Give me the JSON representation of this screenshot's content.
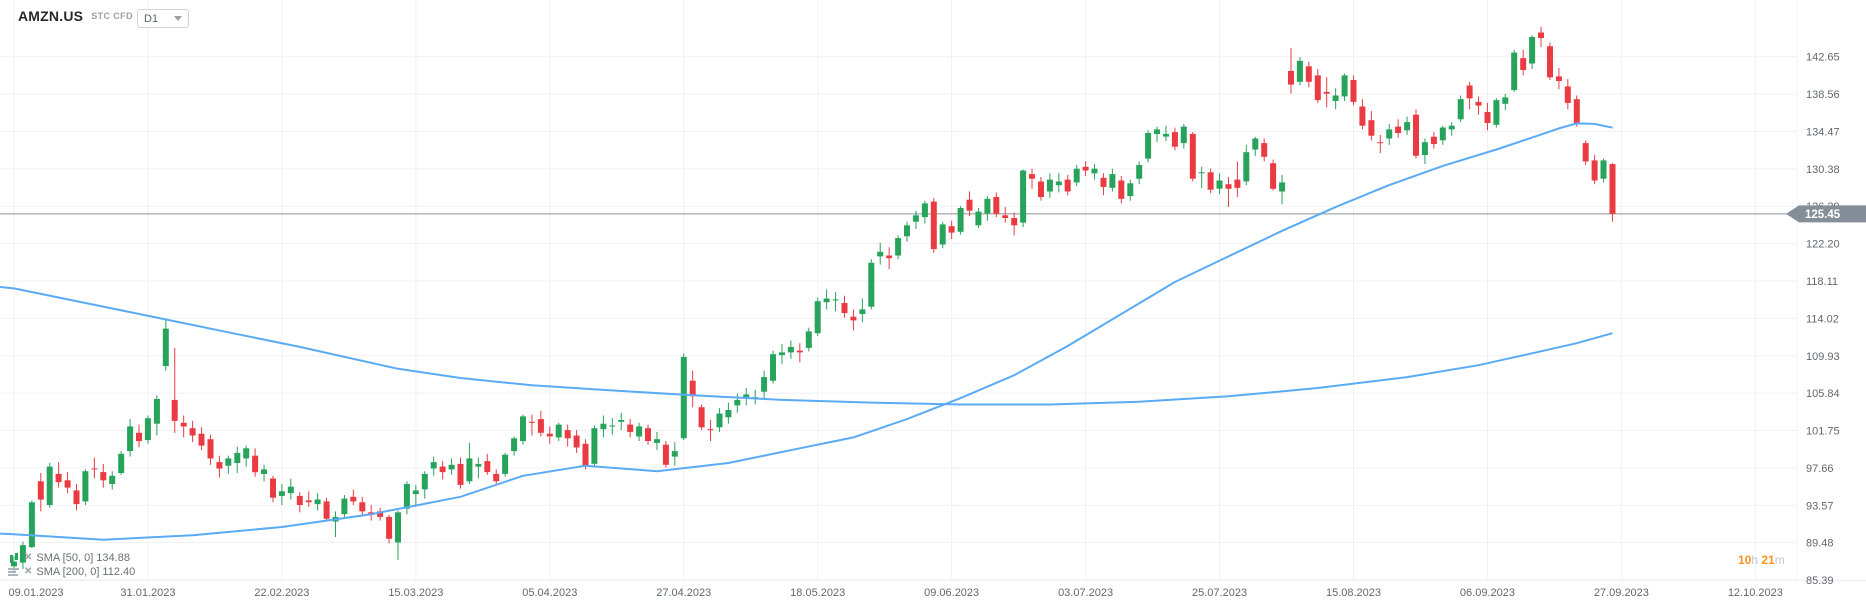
{
  "header": {
    "symbol": "AMZN.US",
    "instrument_type": "STC CFD",
    "timeframe": "D1"
  },
  "indicators": [
    {
      "icon": "candles-icon",
      "close_label": "✕",
      "label": "SMA [50, 0] 134.88"
    },
    {
      "icon": "lines-icon",
      "close_label": "✕",
      "label": "SMA [200, 0] 112.40"
    }
  ],
  "countdown": {
    "hours": "10",
    "hours_unit": "h ",
    "minutes": "21",
    "minutes_unit": "m"
  },
  "price_axis": {
    "labels": [
      "142.65",
      "138.56",
      "134.47",
      "130.38",
      "126.29",
      "122.20",
      "118.11",
      "114.02",
      "109.93",
      "105.84",
      "101.75",
      "97.66",
      "93.57",
      "89.48",
      "85.39"
    ],
    "current_price": "125.45"
  },
  "time_axis": {
    "labels": [
      "09.01.2023",
      "31.01.2023",
      "22.02.2023",
      "15.03.2023",
      "05.04.2023",
      "27.04.2023",
      "18.05.2023",
      "09.06.2023",
      "03.07.2023",
      "25.07.2023",
      "15.08.2023",
      "06.09.2023",
      "27.09.2023",
      "12.10.2023"
    ]
  },
  "colors": {
    "up": "#27a35c",
    "down": "#ea3b43",
    "sma": "#5aabf5",
    "grid": "#f0f1f3",
    "price_line": "#8c9196",
    "price_tag_bg": "#848e98",
    "axis_text": "#62686f",
    "countdown_orange": "#f7941d"
  },
  "chart_data": {
    "type": "candlestick",
    "title": "AMZN.US STC CFD D1",
    "ylabel": "price",
    "axis_price_top": 142.65,
    "axis_price_step": 4.09,
    "axis_price_bottom": 85.39,
    "current_price": 125.45,
    "grid": true,
    "candles_per_label": 15,
    "candles": [
      [
        86.9,
        88.0,
        86.2,
        87.4
      ],
      [
        87.3,
        89.6,
        86.6,
        89.2
      ],
      [
        89.0,
        94.1,
        88.9,
        93.9
      ],
      [
        96.2,
        97.1,
        92.9,
        94.2
      ],
      [
        93.6,
        98.2,
        93.3,
        97.8
      ],
      [
        97.0,
        98.3,
        95.5,
        96.1
      ],
      [
        96.3,
        97.2,
        94.9,
        95.5
      ],
      [
        95.2,
        95.9,
        93.0,
        93.7
      ],
      [
        94.0,
        97.5,
        93.6,
        97.3
      ],
      [
        97.6,
        98.8,
        96.5,
        97.5
      ],
      [
        97.2,
        98.1,
        95.5,
        96.3
      ],
      [
        95.9,
        97.3,
        95.3,
        96.8
      ],
      [
        97.1,
        99.5,
        96.9,
        99.2
      ],
      [
        99.5,
        103.0,
        98.9,
        102.2
      ],
      [
        101.5,
        102.4,
        99.9,
        100.6
      ],
      [
        100.7,
        103.4,
        100.3,
        103.1
      ],
      [
        102.5,
        105.6,
        101.2,
        105.2
      ],
      [
        108.8,
        114.0,
        108.3,
        112.9
      ],
      [
        105.1,
        110.8,
        101.5,
        102.8
      ],
      [
        102.6,
        103.4,
        101.0,
        102.2
      ],
      [
        102.0,
        102.8,
        100.5,
        101.2
      ],
      [
        101.4,
        102.1,
        99.6,
        100.1
      ],
      [
        100.8,
        101.3,
        98.0,
        98.7
      ],
      [
        98.3,
        99.0,
        96.6,
        97.6
      ],
      [
        97.9,
        99.0,
        97.0,
        98.7
      ],
      [
        98.2,
        100.0,
        97.1,
        99.3
      ],
      [
        98.7,
        100.1,
        97.8,
        99.8
      ],
      [
        99.0,
        99.8,
        96.7,
        97.2
      ],
      [
        97.0,
        98.0,
        96.2,
        97.5
      ],
      [
        96.5,
        96.8,
        93.9,
        94.4
      ],
      [
        94.6,
        95.9,
        93.6,
        95.1
      ],
      [
        94.9,
        96.5,
        94.2,
        95.6
      ],
      [
        94.6,
        95.0,
        92.8,
        93.6
      ],
      [
        94.1,
        95.1,
        93.4,
        93.9
      ],
      [
        93.7,
        94.9,
        93.0,
        94.2
      ],
      [
        94.0,
        94.4,
        91.8,
        92.1
      ],
      [
        91.8,
        92.9,
        90.1,
        92.3
      ],
      [
        92.6,
        94.7,
        92.2,
        94.3
      ],
      [
        94.5,
        95.3,
        93.6,
        94.0
      ],
      [
        93.9,
        94.5,
        92.4,
        92.9
      ],
      [
        92.8,
        93.6,
        91.9,
        92.5
      ],
      [
        92.9,
        93.3,
        91.9,
        92.3
      ],
      [
        92.3,
        92.5,
        89.4,
        89.9
      ],
      [
        89.5,
        93.0,
        87.6,
        92.8
      ],
      [
        93.2,
        96.2,
        92.6,
        95.9
      ],
      [
        94.8,
        95.8,
        93.4,
        95.2
      ],
      [
        95.3,
        97.3,
        94.3,
        97.0
      ],
      [
        97.6,
        98.9,
        96.8,
        98.3
      ],
      [
        97.8,
        98.4,
        96.4,
        97.2
      ],
      [
        97.5,
        98.7,
        96.9,
        98.0
      ],
      [
        98.1,
        98.8,
        95.4,
        95.8
      ],
      [
        96.2,
        100.4,
        95.9,
        98.7
      ],
      [
        97.8,
        98.8,
        96.5,
        98.1
      ],
      [
        98.4,
        99.2,
        96.9,
        97.2
      ],
      [
        97.0,
        97.5,
        95.8,
        96.2
      ],
      [
        97.0,
        99.3,
        96.7,
        99.1
      ],
      [
        99.5,
        101.1,
        99.0,
        100.9
      ],
      [
        100.6,
        103.5,
        100.2,
        103.3
      ],
      [
        102.7,
        103.5,
        101.2,
        102.6
      ],
      [
        103.0,
        103.9,
        101.1,
        101.5
      ],
      [
        101.4,
        102.2,
        100.3,
        101.1
      ],
      [
        101.0,
        102.6,
        100.6,
        102.4
      ],
      [
        101.8,
        102.4,
        100.0,
        100.9
      ],
      [
        101.2,
        101.8,
        99.3,
        99.9
      ],
      [
        100.3,
        100.8,
        97.5,
        97.8
      ],
      [
        98.1,
        102.3,
        97.7,
        102.0
      ],
      [
        101.9,
        103.4,
        101.0,
        102.5
      ],
      [
        102.2,
        103.1,
        101.3,
        102.3
      ],
      [
        102.7,
        103.7,
        101.8,
        102.9
      ],
      [
        102.4,
        103.0,
        101.0,
        101.6
      ],
      [
        101.1,
        102.6,
        100.6,
        102.2
      ],
      [
        102.0,
        102.4,
        100.2,
        100.6
      ],
      [
        100.4,
        101.6,
        99.6,
        100.8
      ],
      [
        100.2,
        100.6,
        97.7,
        98.0
      ],
      [
        98.9,
        100.5,
        97.9,
        99.5
      ],
      [
        100.9,
        110.2,
        100.7,
        109.8
      ],
      [
        107.2,
        108.3,
        104.3,
        105.5
      ],
      [
        104.3,
        104.6,
        101.8,
        102.1
      ],
      [
        101.9,
        102.9,
        100.6,
        101.8
      ],
      [
        102.1,
        104.2,
        101.6,
        103.6
      ],
      [
        103.2,
        104.8,
        102.5,
        104.0
      ],
      [
        104.5,
        105.8,
        103.7,
        105.1
      ],
      [
        105.3,
        106.4,
        104.5,
        105.7
      ],
      [
        105.4,
        106.2,
        104.6,
        105.4
      ],
      [
        106.0,
        108.3,
        105.1,
        107.6
      ],
      [
        107.2,
        110.5,
        106.9,
        110.1
      ],
      [
        110.0,
        111.2,
        109.0,
        110.3
      ],
      [
        110.3,
        111.6,
        109.6,
        110.9
      ],
      [
        110.5,
        111.3,
        109.2,
        110.3
      ],
      [
        110.8,
        113.0,
        110.4,
        112.6
      ],
      [
        112.4,
        116.3,
        112.1,
        115.9
      ],
      [
        115.8,
        117.2,
        115.0,
        116.2
      ],
      [
        116.0,
        116.9,
        114.8,
        116.1
      ],
      [
        115.7,
        116.5,
        114.1,
        114.6
      ],
      [
        114.2,
        115.0,
        112.7,
        113.8
      ],
      [
        114.5,
        116.2,
        113.6,
        115.0
      ],
      [
        115.3,
        120.5,
        115.0,
        120.1
      ],
      [
        120.8,
        122.3,
        119.9,
        121.3
      ],
      [
        120.9,
        121.8,
        119.4,
        120.6
      ],
      [
        120.9,
        123.1,
        120.5,
        122.8
      ],
      [
        123.0,
        124.6,
        122.4,
        124.2
      ],
      [
        124.6,
        125.8,
        123.8,
        125.3
      ],
      [
        125.1,
        126.9,
        124.4,
        126.6
      ],
      [
        126.8,
        127.2,
        121.2,
        121.6
      ],
      [
        122.1,
        124.6,
        121.7,
        124.3
      ],
      [
        124.1,
        124.7,
        122.7,
        123.4
      ],
      [
        123.5,
        126.3,
        123.2,
        126.1
      ],
      [
        127.0,
        127.9,
        125.2,
        125.8
      ],
      [
        124.2,
        126.1,
        123.9,
        125.7
      ],
      [
        125.5,
        127.4,
        124.7,
        127.1
      ],
      [
        127.3,
        127.8,
        125.1,
        125.5
      ],
      [
        125.3,
        126.2,
        124.5,
        125.0
      ],
      [
        125.0,
        125.6,
        123.1,
        124.2
      ],
      [
        124.5,
        130.3,
        124.0,
        130.2
      ],
      [
        129.8,
        130.4,
        128.2,
        129.3
      ],
      [
        129.0,
        129.5,
        126.9,
        127.3
      ],
      [
        127.9,
        129.9,
        127.2,
        129.2
      ],
      [
        128.6,
        129.9,
        127.8,
        129.0
      ],
      [
        129.2,
        129.7,
        127.5,
        127.9
      ],
      [
        128.9,
        130.8,
        128.5,
        130.4
      ],
      [
        130.6,
        131.2,
        129.6,
        130.2
      ],
      [
        129.9,
        130.9,
        129.2,
        130.4
      ],
      [
        129.4,
        129.9,
        127.5,
        128.4
      ],
      [
        128.3,
        130.4,
        127.9,
        129.8
      ],
      [
        129.1,
        129.6,
        126.6,
        127.1
      ],
      [
        127.4,
        129.2,
        126.9,
        128.8
      ],
      [
        129.3,
        131.2,
        128.7,
        130.8
      ],
      [
        131.5,
        134.6,
        131.1,
        134.3
      ],
      [
        134.2,
        135.0,
        133.3,
        134.7
      ],
      [
        133.9,
        135.1,
        133.4,
        134.2
      ],
      [
        134.4,
        134.9,
        132.4,
        132.8
      ],
      [
        133.2,
        135.3,
        132.6,
        135.0
      ],
      [
        134.2,
        134.4,
        129.0,
        129.3
      ],
      [
        129.9,
        130.6,
        128.3,
        130.0
      ],
      [
        130.0,
        130.4,
        127.7,
        128.1
      ],
      [
        128.2,
        129.9,
        127.6,
        129.1
      ],
      [
        128.7,
        129.5,
        126.2,
        128.2
      ],
      [
        129.2,
        131.2,
        127.3,
        128.3
      ],
      [
        129.0,
        133.0,
        128.6,
        132.2
      ],
      [
        132.5,
        133.9,
        131.8,
        133.7
      ],
      [
        133.2,
        133.7,
        131.2,
        131.7
      ],
      [
        131.0,
        131.4,
        128.0,
        128.2
      ],
      [
        127.9,
        129.7,
        126.5,
        128.9
      ],
      [
        141.1,
        143.6,
        138.6,
        139.6
      ],
      [
        139.9,
        142.6,
        139.5,
        142.2
      ],
      [
        141.6,
        142.1,
        139.3,
        139.9
      ],
      [
        140.6,
        141.3,
        137.6,
        137.9
      ],
      [
        138.8,
        140.4,
        137.1,
        138.6
      ],
      [
        137.8,
        139.2,
        136.9,
        138.4
      ],
      [
        138.3,
        140.8,
        137.8,
        140.6
      ],
      [
        140.1,
        140.6,
        137.3,
        137.7
      ],
      [
        137.2,
        138.0,
        134.7,
        135.1
      ],
      [
        135.7,
        136.7,
        133.5,
        134.0
      ],
      [
        133.3,
        134.1,
        132.1,
        133.2
      ],
      [
        133.7,
        135.3,
        133.0,
        134.7
      ],
      [
        135.0,
        135.8,
        133.8,
        134.3
      ],
      [
        134.6,
        136.1,
        134.1,
        135.5
      ],
      [
        136.3,
        136.9,
        131.5,
        131.8
      ],
      [
        131.9,
        133.7,
        130.9,
        133.3
      ],
      [
        133.9,
        134.4,
        132.6,
        133.1
      ],
      [
        133.5,
        135.1,
        133.0,
        134.9
      ],
      [
        134.7,
        135.5,
        134.0,
        135.1
      ],
      [
        135.8,
        138.4,
        135.5,
        138.0
      ],
      [
        139.5,
        139.9,
        136.9,
        138.1
      ],
      [
        137.7,
        138.3,
        136.3,
        137.3
      ],
      [
        136.6,
        137.6,
        134.6,
        135.4
      ],
      [
        135.2,
        138.1,
        134.9,
        137.9
      ],
      [
        137.5,
        138.6,
        136.8,
        138.2
      ],
      [
        139.0,
        143.4,
        138.8,
        143.1
      ],
      [
        142.5,
        143.4,
        140.6,
        141.2
      ],
      [
        141.9,
        145.0,
        141.3,
        144.8
      ],
      [
        145.3,
        145.9,
        143.7,
        144.7
      ],
      [
        143.8,
        144.2,
        140.1,
        140.4
      ],
      [
        140.5,
        141.4,
        139.1,
        140.0
      ],
      [
        139.4,
        140.2,
        136.9,
        137.6
      ],
      [
        138.0,
        138.4,
        135.0,
        135.3
      ],
      [
        133.2,
        133.5,
        130.8,
        131.2
      ],
      [
        131.3,
        131.9,
        128.7,
        129.1
      ],
      [
        129.3,
        131.5,
        128.9,
        131.3
      ],
      [
        130.9,
        131.0,
        124.6,
        125.45
      ]
    ],
    "sma50": [
      [
        -2,
        90.5
      ],
      [
        0,
        90.4
      ],
      [
        10,
        89.8
      ],
      [
        20,
        90.3
      ],
      [
        30,
        91.2
      ],
      [
        40,
        92.6
      ],
      [
        50,
        94.5
      ],
      [
        57,
        96.8
      ],
      [
        64,
        97.9
      ],
      [
        72,
        97.3
      ],
      [
        80,
        98.2
      ],
      [
        88,
        99.8
      ],
      [
        94,
        101.0
      ],
      [
        100,
        103.0
      ],
      [
        106,
        105.3
      ],
      [
        112,
        107.8
      ],
      [
        118,
        111.0
      ],
      [
        124,
        114.5
      ],
      [
        130,
        118.0
      ],
      [
        136,
        120.8
      ],
      [
        142,
        123.6
      ],
      [
        148,
        126.2
      ],
      [
        154,
        128.6
      ],
      [
        160,
        130.7
      ],
      [
        166,
        132.5
      ],
      [
        170,
        133.8
      ],
      [
        173,
        134.8
      ],
      [
        175,
        135.35
      ],
      [
        177,
        135.3
      ],
      [
        179,
        134.88
      ]
    ],
    "sma200": [
      [
        -2,
        117.5
      ],
      [
        0,
        117.3
      ],
      [
        8,
        115.7
      ],
      [
        16,
        114.1
      ],
      [
        24,
        112.5
      ],
      [
        32,
        110.9
      ],
      [
        43,
        108.5
      ],
      [
        50,
        107.5
      ],
      [
        58,
        106.7
      ],
      [
        66,
        106.2
      ],
      [
        76,
        105.6
      ],
      [
        86,
        105.1
      ],
      [
        96,
        104.8
      ],
      [
        106,
        104.6
      ],
      [
        116,
        104.6
      ],
      [
        126,
        104.9
      ],
      [
        136,
        105.5
      ],
      [
        146,
        106.4
      ],
      [
        156,
        107.6
      ],
      [
        164,
        108.9
      ],
      [
        170,
        110.2
      ],
      [
        175,
        111.3
      ],
      [
        179,
        112.4
      ]
    ]
  }
}
